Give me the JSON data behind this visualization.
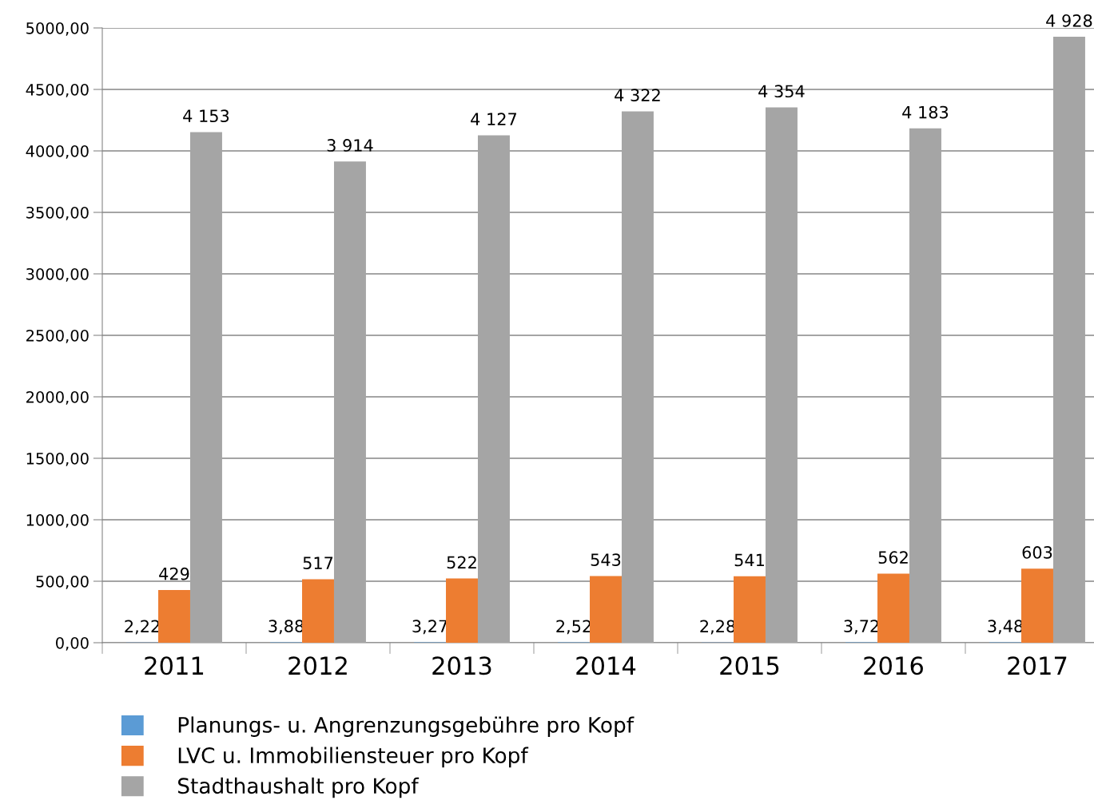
{
  "chart_data": {
    "type": "bar",
    "categories": [
      "2011",
      "2012",
      "2013",
      "2014",
      "2015",
      "2016",
      "2017"
    ],
    "series": [
      {
        "name": "Planungs- u. Angrenzungsgebühre pro Kopf",
        "color": "#5b9bd5",
        "values": [
          2.22,
          3.88,
          3.27,
          2.52,
          2.28,
          3.72,
          3.48
        ],
        "value_labels": [
          "2,22",
          "3,88",
          "3,27",
          "2,52",
          "2,28",
          "3,72",
          "3,48"
        ]
      },
      {
        "name": "LVC u. Immobiliensteuer pro Kopf",
        "color": "#ed7d31",
        "values": [
          429,
          517,
          522,
          543,
          541,
          562,
          603
        ],
        "value_labels": [
          "429",
          "517",
          "522",
          "543",
          "541",
          "562",
          "603"
        ]
      },
      {
        "name": "Stadthaushalt pro Kopf",
        "color": "#a5a5a5",
        "values": [
          4153,
          3914,
          4127,
          4322,
          4354,
          4183,
          4928
        ],
        "value_labels": [
          "4 153",
          "3 914",
          "4 127",
          "4 322",
          "4 354",
          "4 183",
          "4 928"
        ]
      }
    ],
    "ylim": [
      0,
      5000
    ],
    "yticks": [
      {
        "value": 0,
        "label": "0,00"
      },
      {
        "value": 500,
        "label": "500,00"
      },
      {
        "value": 1000,
        "label": "1000,00"
      },
      {
        "value": 1500,
        "label": "1500,00"
      },
      {
        "value": 2000,
        "label": "2000,00"
      },
      {
        "value": 2500,
        "label": "2500,00"
      },
      {
        "value": 3000,
        "label": "3000,00"
      },
      {
        "value": 3500,
        "label": "3500,00"
      },
      {
        "value": 4000,
        "label": "4000,00"
      },
      {
        "value": 4500,
        "label": "4500,00"
      },
      {
        "value": 5000,
        "label": "5000,00"
      }
    ],
    "grid": "y",
    "legend": "bottom"
  }
}
